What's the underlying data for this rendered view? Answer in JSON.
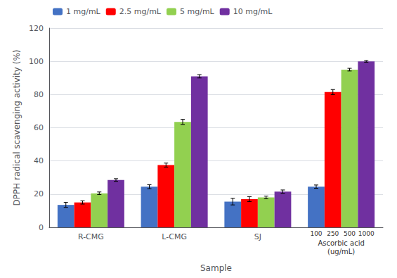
{
  "chart_data": {
    "type": "bar",
    "title": "",
    "xlabel": "Sample",
    "ylabel": "DPPH radical scavenging activity (%)",
    "categories": [
      "R-CMG",
      "L-CMG",
      "SJ",
      null
    ],
    "annotations": [
      "100",
      "250",
      "500",
      "1000",
      "Ascorbic acid",
      "(ug/mL)"
    ],
    "series": [
      {
        "name": "1 mg/mL",
        "color": "#4472C4",
        "values": [
          13.5,
          24.5,
          15.5,
          24.5
        ],
        "errors": [
          1.5,
          1.2,
          2.0,
          1.0
        ]
      },
      {
        "name": "2.5 mg/mL",
        "color": "#FF0000",
        "values": [
          15.0,
          37.5,
          17.0,
          81.5
        ],
        "errors": [
          1.0,
          1.2,
          1.5,
          1.5
        ]
      },
      {
        "name": "5 mg/mL",
        "color": "#92D050",
        "values": [
          20.5,
          63.5,
          18.0,
          95.0
        ],
        "errors": [
          0.8,
          1.5,
          0.8,
          0.8
        ]
      },
      {
        "name": "10 mg/mL",
        "color": "#7030A0",
        "values": [
          28.5,
          91.0,
          21.5,
          100.0
        ],
        "errors": [
          0.8,
          1.0,
          1.0,
          0.5
        ]
      }
    ],
    "ylim": [
      0,
      120
    ],
    "yticks": [
      0,
      20,
      40,
      60,
      80,
      100,
      120
    ],
    "grid": true,
    "legend": "upper left"
  }
}
